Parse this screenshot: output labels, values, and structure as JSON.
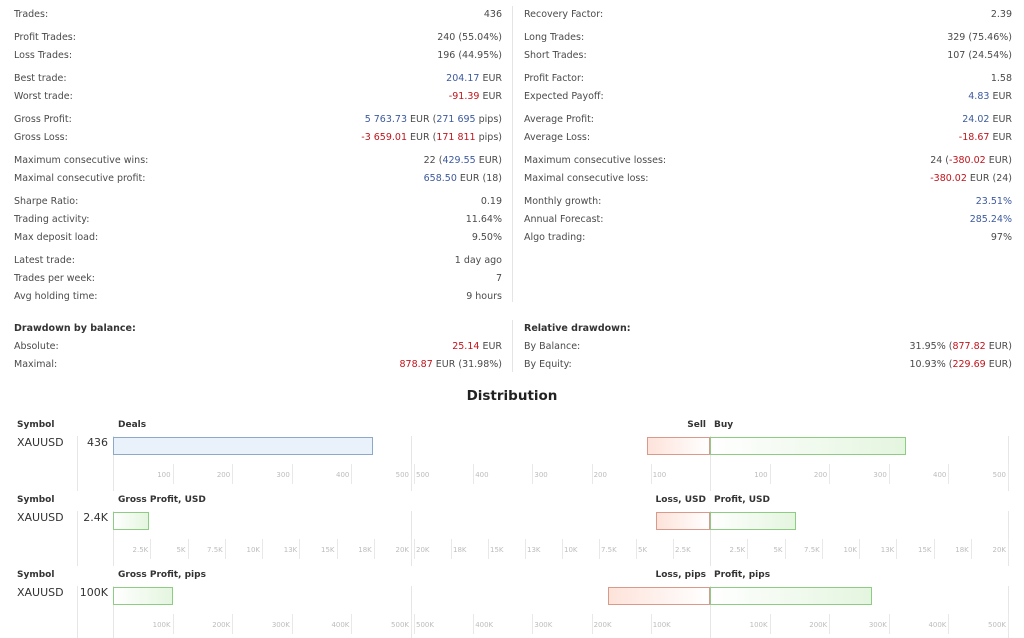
{
  "stats_left": [
    [
      {
        "label": "Trades:",
        "value": [
          {
            "t": "436"
          }
        ]
      }
    ],
    [
      {
        "label": "Profit Trades:",
        "value": [
          {
            "t": "240 (55.04%)"
          }
        ]
      },
      {
        "label": "Loss Trades:",
        "value": [
          {
            "t": "196 (44.95%)"
          }
        ]
      }
    ],
    [
      {
        "label": "Best trade:",
        "value": [
          {
            "t": "204.17",
            "c": "blue"
          },
          {
            "t": " EUR"
          }
        ]
      },
      {
        "label": "Worst trade:",
        "value": [
          {
            "t": "-91.39",
            "c": "red"
          },
          {
            "t": " EUR"
          }
        ]
      }
    ],
    [
      {
        "label": "Gross Profit:",
        "value": [
          {
            "t": "5 763.73",
            "c": "blue"
          },
          {
            "t": " EUR ("
          },
          {
            "t": "271 695",
            "c": "blue"
          },
          {
            "t": " pips)"
          }
        ]
      },
      {
        "label": "Gross Loss:",
        "value": [
          {
            "t": "-3 659.01",
            "c": "red"
          },
          {
            "t": " EUR ("
          },
          {
            "t": "171 811",
            "c": "red"
          },
          {
            "t": " pips)"
          }
        ]
      }
    ],
    [
      {
        "label": "Maximum consecutive wins:",
        "value": [
          {
            "t": "22 ("
          },
          {
            "t": "429.55",
            "c": "blue"
          },
          {
            "t": " EUR)"
          }
        ]
      },
      {
        "label": "Maximal consecutive profit:",
        "value": [
          {
            "t": "658.50",
            "c": "blue"
          },
          {
            "t": " EUR (18)"
          }
        ]
      }
    ],
    [
      {
        "label": "Sharpe Ratio:",
        "value": [
          {
            "t": "0.19"
          }
        ]
      },
      {
        "label": "Trading activity:",
        "value": [
          {
            "t": "11.64%"
          }
        ]
      },
      {
        "label": "Max deposit load:",
        "value": [
          {
            "t": "9.50%"
          }
        ]
      }
    ],
    [
      {
        "label": "Latest trade:",
        "value": [
          {
            "t": "1 day ago"
          }
        ]
      },
      {
        "label": "Trades per week:",
        "value": [
          {
            "t": "7"
          }
        ]
      },
      {
        "label": "Avg holding time:",
        "value": [
          {
            "t": "9 hours"
          }
        ]
      }
    ]
  ],
  "stats_right": [
    [
      {
        "label": "Recovery Factor:",
        "value": [
          {
            "t": "2.39"
          }
        ]
      }
    ],
    [
      {
        "label": "Long Trades:",
        "value": [
          {
            "t": "329 (75.46%)"
          }
        ]
      },
      {
        "label": "Short Trades:",
        "value": [
          {
            "t": "107 (24.54%)"
          }
        ]
      }
    ],
    [
      {
        "label": "Profit Factor:",
        "value": [
          {
            "t": "1.58"
          }
        ]
      },
      {
        "label": "Expected Payoff:",
        "value": [
          {
            "t": "4.83",
            "c": "blue"
          },
          {
            "t": " EUR"
          }
        ]
      }
    ],
    [
      {
        "label": "Average Profit:",
        "value": [
          {
            "t": "24.02",
            "c": "blue"
          },
          {
            "t": " EUR"
          }
        ]
      },
      {
        "label": "Average Loss:",
        "value": [
          {
            "t": "-18.67",
            "c": "red"
          },
          {
            "t": " EUR"
          }
        ]
      }
    ],
    [
      {
        "label": "Maximum consecutive losses:",
        "value": [
          {
            "t": "24 ("
          },
          {
            "t": "-380.02",
            "c": "red"
          },
          {
            "t": " EUR)"
          }
        ]
      },
      {
        "label": "Maximal consecutive loss:",
        "value": [
          {
            "t": "-380.02",
            "c": "red"
          },
          {
            "t": " EUR (24)"
          }
        ]
      }
    ],
    [
      {
        "label": "Monthly growth:",
        "value": [
          {
            "t": "23.51%",
            "c": "blue"
          }
        ]
      },
      {
        "label": "Annual Forecast:",
        "value": [
          {
            "t": "285.24%",
            "c": "blue"
          }
        ]
      },
      {
        "label": "Algo trading:",
        "value": [
          {
            "t": "97%"
          }
        ]
      }
    ]
  ],
  "drawdown_balance": {
    "title": "Drawdown by balance:",
    "rows": [
      {
        "label": "Absolute:",
        "value": [
          {
            "t": "25.14",
            "c": "red"
          },
          {
            "t": " EUR"
          }
        ]
      },
      {
        "label": "Maximal:",
        "value": [
          {
            "t": "878.87",
            "c": "red"
          },
          {
            "t": " EUR (31.98%)"
          }
        ]
      }
    ]
  },
  "drawdown_relative": {
    "title": "Relative drawdown:",
    "rows": [
      {
        "label": "By Balance:",
        "value": [
          {
            "t": "31.95% ("
          },
          {
            "t": "877.82",
            "c": "red"
          },
          {
            "t": " EUR)"
          }
        ]
      },
      {
        "label": "By Equity:",
        "value": [
          {
            "t": "10.93% ("
          },
          {
            "t": "229.69",
            "c": "red"
          },
          {
            "t": " EUR)"
          }
        ]
      }
    ]
  },
  "distribution": {
    "title": "Distribution",
    "colors": {
      "blue_fill": "#e9f1fa",
      "blue_border": "#8ea9c8",
      "green_border": "#8ecb83",
      "red_border": "#d99a8c"
    },
    "charts": [
      {
        "symbol_header": "Symbol",
        "symbol": "XAUUSD",
        "left_header": "Deals",
        "left_value_label": "436",
        "left_value": 436,
        "left_max": 500,
        "left_ticks": [
          "100",
          "200",
          "300",
          "400",
          "500"
        ],
        "left_style": "blue",
        "neg_header": "Sell",
        "pos_header": "Buy",
        "neg_value": 107,
        "pos_value": 329,
        "right_max": 500,
        "right_neg_ticks": [
          "500",
          "400",
          "300",
          "200",
          "100"
        ],
        "right_pos_ticks": [
          "100",
          "200",
          "300",
          "400",
          "500"
        ]
      },
      {
        "symbol_header": "Symbol",
        "symbol": "XAUUSD",
        "left_header": "Gross Profit, USD",
        "left_value_label": "2.4K",
        "left_value": 2400,
        "left_max": 20000,
        "left_ticks": [
          "2.5K",
          "5K",
          "7.5K",
          "10K",
          "13K",
          "15K",
          "18K",
          "20K"
        ],
        "left_style": "green",
        "neg_header": "Loss, USD",
        "pos_header": "Profit, USD",
        "neg_value": 3659,
        "pos_value": 5764,
        "right_max": 20000,
        "right_neg_ticks": [
          "20K",
          "18K",
          "15K",
          "13K",
          "10K",
          "7.5K",
          "5K",
          "2.5K"
        ],
        "right_pos_ticks": [
          "2.5K",
          "5K",
          "7.5K",
          "10K",
          "13K",
          "15K",
          "18K",
          "20K"
        ]
      },
      {
        "symbol_header": "Symbol",
        "symbol": "XAUUSD",
        "left_header": "Gross Profit, pips",
        "left_value_label": "100K",
        "left_value": 100000,
        "left_max": 500000,
        "left_ticks": [
          "100K",
          "200K",
          "300K",
          "400K",
          "500K"
        ],
        "left_style": "green",
        "neg_header": "Loss, pips",
        "pos_header": "Profit, pips",
        "neg_value": 171811,
        "pos_value": 271695,
        "right_max": 500000,
        "right_neg_ticks": [
          "500K",
          "400K",
          "300K",
          "200K",
          "100K"
        ],
        "right_pos_ticks": [
          "100K",
          "200K",
          "300K",
          "400K",
          "500K"
        ]
      }
    ]
  }
}
